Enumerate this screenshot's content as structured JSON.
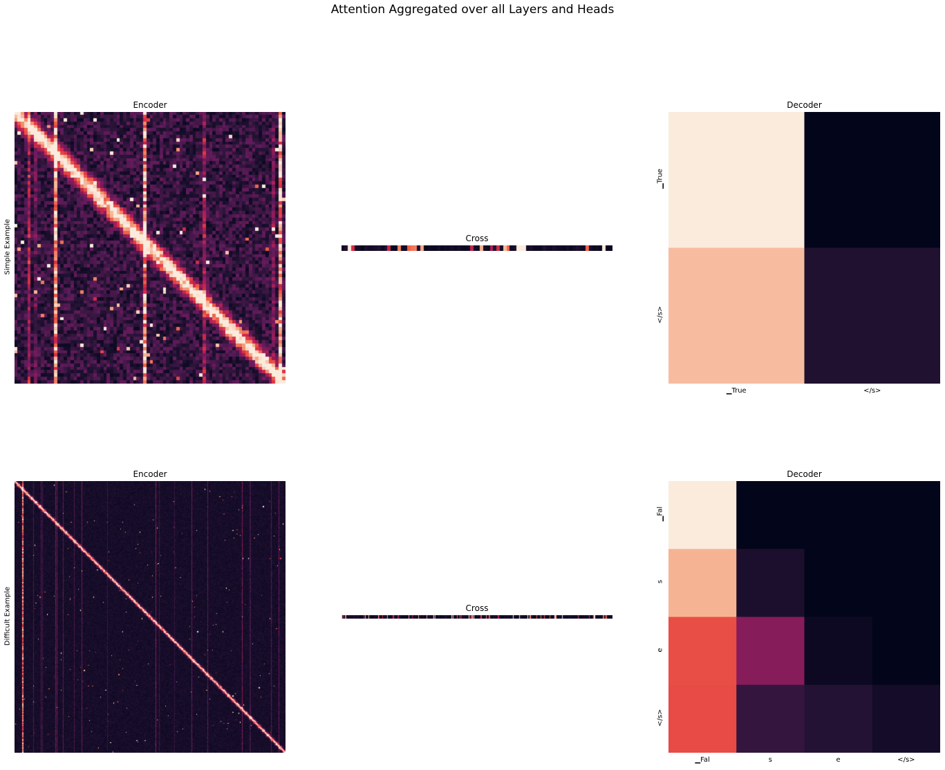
{
  "figure": {
    "title": "Attention Aggregated over all Layers and Heads",
    "row_labels": [
      "Simple Example",
      "Difficult Example"
    ]
  },
  "chart_data": [
    {
      "type": "heatmap",
      "title": "Encoder",
      "row": "Simple Example",
      "matrix_size": 82,
      "pattern": "strong diagonal band with bright vertical column stripes",
      "colormap": "rocket"
    },
    {
      "type": "heatmap",
      "title": "Cross",
      "row": "Simple Example",
      "rows": 1,
      "columns": 82,
      "colormap": "rocket"
    },
    {
      "type": "heatmap",
      "title": "Decoder",
      "row": "Simple Example",
      "xticklabels": [
        "▁True",
        "</s>"
      ],
      "yticklabels": [
        "▁True",
        "</s>"
      ],
      "values": [
        [
          1.0,
          0.0
        ],
        [
          0.9,
          0.12
        ]
      ],
      "colormap": "rocket"
    },
    {
      "type": "heatmap",
      "title": "Encoder",
      "row": "Difficult Example",
      "matrix_size": 330,
      "pattern": "thin diagonal band with faint vertical column stripes",
      "colormap": "rocket"
    },
    {
      "type": "heatmap",
      "title": "Cross",
      "row": "Difficult Example",
      "rows": 1,
      "columns": 330,
      "colormap": "rocket"
    },
    {
      "type": "heatmap",
      "title": "Decoder",
      "row": "Difficult Example",
      "xticklabels": [
        "▁Fal",
        "s",
        "e",
        "</s>"
      ],
      "yticklabels": [
        "▁Fal",
        "s",
        "e",
        "</s>"
      ],
      "values": [
        [
          1.0,
          0.0,
          0.0,
          0.0
        ],
        [
          0.88,
          0.1,
          0.0,
          0.0
        ],
        [
          0.68,
          0.4,
          0.04,
          0.0
        ],
        [
          0.67,
          0.18,
          0.13,
          0.07
        ]
      ],
      "colormap": "rocket"
    }
  ]
}
